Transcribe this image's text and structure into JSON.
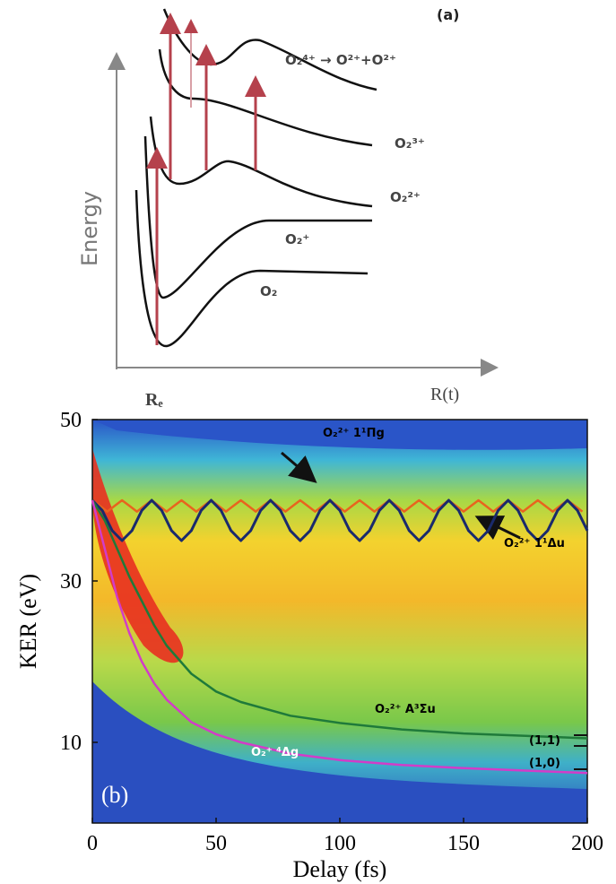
{
  "panel_a": {
    "label": "(a)",
    "y_label": "Energy",
    "x_label": "R(t)",
    "re_label": "Rₑ",
    "states": [
      "O₂",
      "O₂⁺",
      "O₂²⁺",
      "O₂³⁺",
      "O₂⁴⁺ → O²⁺+O²⁺"
    ]
  },
  "chart_data": {
    "type": "line",
    "panel_label": "(b)",
    "x_label": "Delay (fs)",
    "y_label": "KER (eV)",
    "xlim": [
      0,
      200
    ],
    "xticks": [
      0,
      50,
      100,
      150,
      200
    ],
    "ylim": [
      0,
      50
    ],
    "yticks": [
      10,
      30,
      50
    ],
    "annotations": [
      "O₂²⁺ 1¹Πg",
      "O₂²⁺ 1¹Δu",
      "O₂²⁺ A³Σu",
      "O₂⁺ ⁴Δg",
      "(1,1)",
      "(1,0)"
    ],
    "series": [
      {
        "color": "#e8641e",
        "x": [
          0,
          3,
          6,
          9,
          12,
          15,
          18,
          21,
          24,
          27,
          30,
          33,
          36,
          39,
          42,
          45,
          48,
          51,
          54,
          57,
          60,
          63,
          66,
          69,
          72,
          75,
          78,
          81,
          84,
          87,
          90,
          93,
          96,
          99,
          102,
          105,
          108,
          111,
          114,
          117,
          120,
          123,
          126,
          129,
          132,
          135,
          138,
          141,
          144,
          147,
          150,
          153,
          156,
          159,
          162,
          165,
          168,
          171,
          174,
          177,
          180,
          183,
          186,
          189,
          192,
          195,
          198
        ],
        "values": [
          40,
          39.3,
          38.6,
          39.3,
          40,
          39.3,
          38.6,
          39.3,
          40,
          39.3,
          38.6,
          39.3,
          40,
          39.3,
          38.6,
          39.3,
          40,
          39.3,
          38.6,
          39.3,
          40,
          39.3,
          38.6,
          39.3,
          40,
          39.3,
          38.6,
          39.3,
          40,
          39.3,
          38.6,
          39.3,
          40,
          39.3,
          38.6,
          39.3,
          40,
          39.3,
          38.6,
          39.3,
          40,
          39.3,
          38.6,
          39.3,
          40,
          39.3,
          38.6,
          39.3,
          40,
          39.3,
          38.6,
          39.3,
          40,
          39.3,
          38.6,
          39.3,
          40,
          39.3,
          38.6,
          39.3,
          40,
          39.3,
          38.6,
          39.3,
          40,
          39.3,
          38.6
        ]
      },
      {
        "color": "#1a2a6c",
        "x": [
          0,
          4,
          8,
          12,
          16,
          20,
          24,
          28,
          32,
          36,
          40,
          44,
          48,
          52,
          56,
          60,
          64,
          68,
          72,
          76,
          80,
          84,
          88,
          92,
          96,
          100,
          104,
          108,
          112,
          116,
          120,
          124,
          128,
          132,
          136,
          140,
          144,
          148,
          152,
          156,
          160,
          164,
          168,
          172,
          176,
          180,
          184,
          188,
          192,
          196,
          200
        ],
        "values": [
          40,
          38.75,
          36.25,
          35,
          36.25,
          38.75,
          40,
          38.75,
          36.25,
          35,
          36.25,
          38.75,
          40,
          38.75,
          36.25,
          35,
          36.25,
          38.75,
          40,
          38.75,
          36.25,
          35,
          36.25,
          38.75,
          40,
          38.75,
          36.25,
          35,
          36.25,
          38.75,
          40,
          38.75,
          36.25,
          35,
          36.25,
          38.75,
          40,
          38.75,
          36.25,
          35,
          36.25,
          38.75,
          40,
          38.75,
          36.25,
          35,
          36.25,
          38.75,
          40,
          38.75,
          36.25
        ]
      },
      {
        "color": "#1f7a3a",
        "x": [
          0,
          5,
          10,
          15,
          20,
          25,
          30,
          40,
          50,
          60,
          80,
          100,
          125,
          150,
          175,
          200
        ],
        "values": [
          40,
          37.5,
          34,
          30.5,
          27.5,
          24.5,
          22,
          18.5,
          16.3,
          15,
          13.3,
          12.4,
          11.6,
          11.1,
          10.8,
          10.5
        ]
      },
      {
        "color": "#d23cc8",
        "x": [
          0,
          5,
          10,
          15,
          20,
          25,
          30,
          40,
          50,
          60,
          80,
          100,
          125,
          150,
          175,
          200
        ],
        "values": [
          40,
          34,
          28,
          23.5,
          20,
          17.3,
          15.3,
          12.5,
          11,
          10,
          8.6,
          7.8,
          7.2,
          6.8,
          6.5,
          6.2
        ]
      }
    ]
  }
}
